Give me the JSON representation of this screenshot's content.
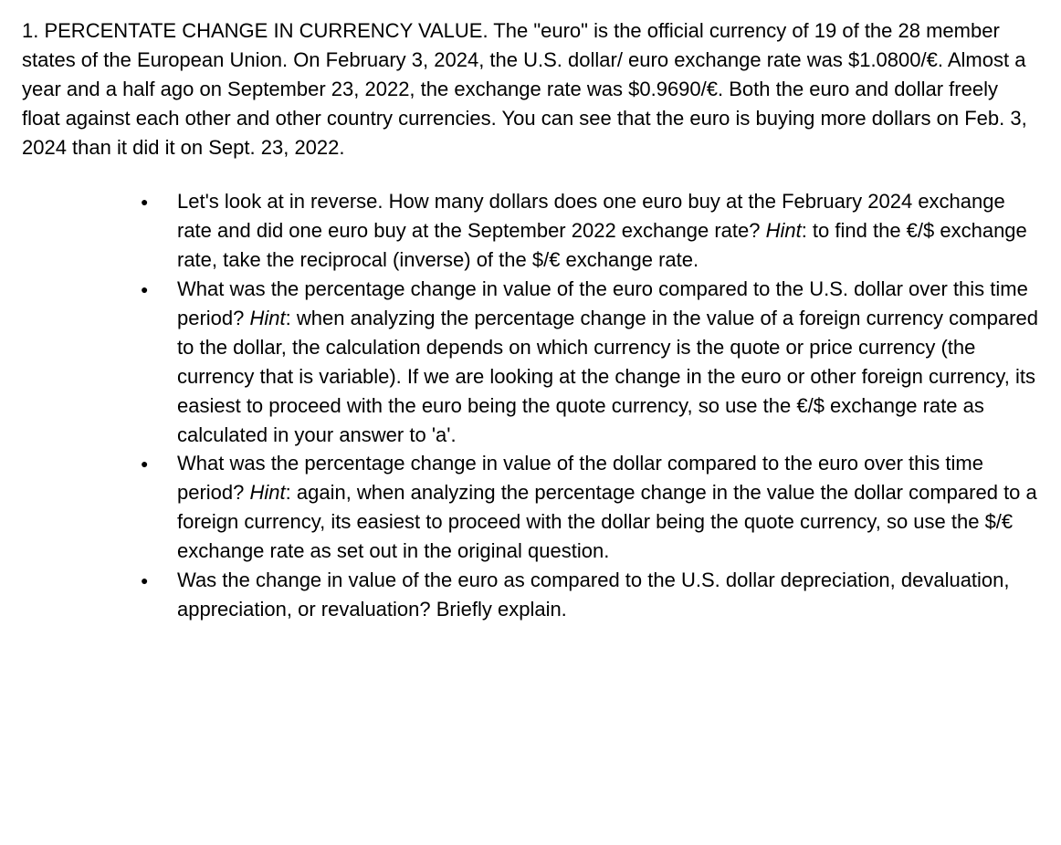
{
  "intro": {
    "text": "1.  PERCENTATE CHANGE IN CURRENCY VALUE. The \"euro\" is the official currency of 19 of the 28 member states of the European Union. On February 3, 2024, the U.S. dollar/ euro exchange rate was $1.0800/€.  Almost a year and a half ago on September 23, 2022, the exchange rate was $0.9690/€. Both the euro and dollar freely float against each other and other country currencies. You can see that the euro is buying more dollars on Feb. 3, 2024 than it did it on Sept. 23, 2022."
  },
  "bullets": {
    "b1": {
      "part1": "Let's look at in reverse. How many dollars does one euro buy at the February 2024 exchange rate and did one euro buy at the September 2022 exchange rate?  ",
      "hint_label": "Hint",
      "part2": ": to find the €/$ exchange rate, take the reciprocal (inverse) of the $/€ exchange rate."
    },
    "b2": {
      "part1": "What was the percentage change in value of the euro compared to the U.S. dollar over this time period? ",
      "hint_label": "Hint",
      "part2": ": when analyzing the percentage change in the value of a foreign currency compared to the dollar, the calculation depends on which currency is the quote or price currency (the currency that is variable).  If we are looking at the change in the euro or other foreign currency, its easiest to proceed with the euro being the quote currency, so use the €/$ exchange rate as calculated in your answer to 'a'."
    },
    "b3": {
      "part1": "What was the percentage change in value of the dollar compared to the euro over this time period? ",
      "hint_label": "Hint",
      "part2": ": again, when analyzing the percentage change in the value the dollar compared to a foreign currency, its easiest to proceed with the dollar being the quote currency, so use the $/€ exchange rate as set out in the original question."
    },
    "b4": {
      "part1": "Was the change in value of the euro as compared to the U.S. dollar depreciation, devaluation, appreciation, or revaluation? Briefly explain."
    }
  }
}
